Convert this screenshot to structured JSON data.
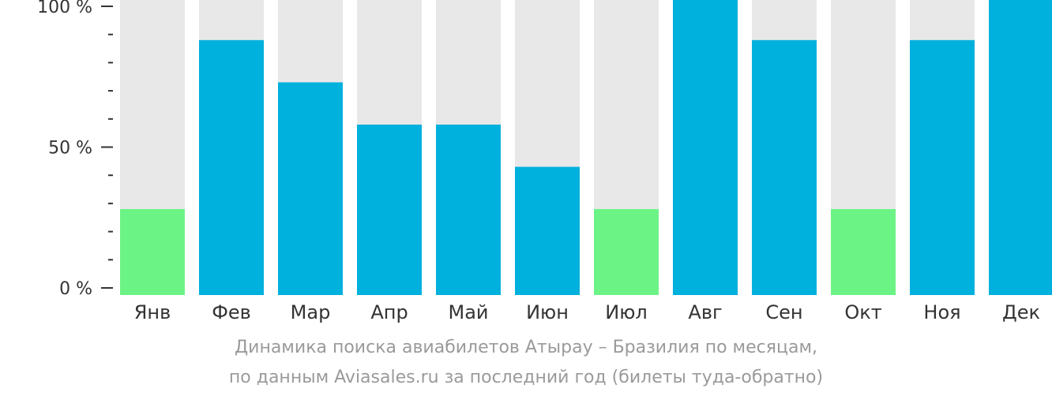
{
  "chart_data": {
    "type": "bar",
    "categories": [
      "Янв",
      "Фев",
      "Мар",
      "Апр",
      "Май",
      "Июн",
      "Июл",
      "Авг",
      "Сен",
      "Окт",
      "Ноя",
      "Дек"
    ],
    "values": [
      28,
      88,
      73,
      58,
      58,
      43,
      28,
      100,
      88,
      28,
      88,
      100
    ],
    "ylim": [
      0,
      100
    ],
    "y_ticks": [
      "0 %",
      "50 %",
      "100 %"
    ],
    "y_tick_values": [
      0,
      50,
      100
    ],
    "minor_tick_step": 10,
    "low_threshold": 30,
    "colors": {
      "bar_high": "#00b0dd",
      "bar_low": "#6cf386",
      "bar_background": "#e8e8e8",
      "axis": "#333333"
    }
  },
  "caption": {
    "line1": "Динамика поиска авиабилетов Атырау – Бразилия по месяцам,",
    "line2": "по данным Aviasales.ru за последний год (билеты туда-обратно)"
  }
}
